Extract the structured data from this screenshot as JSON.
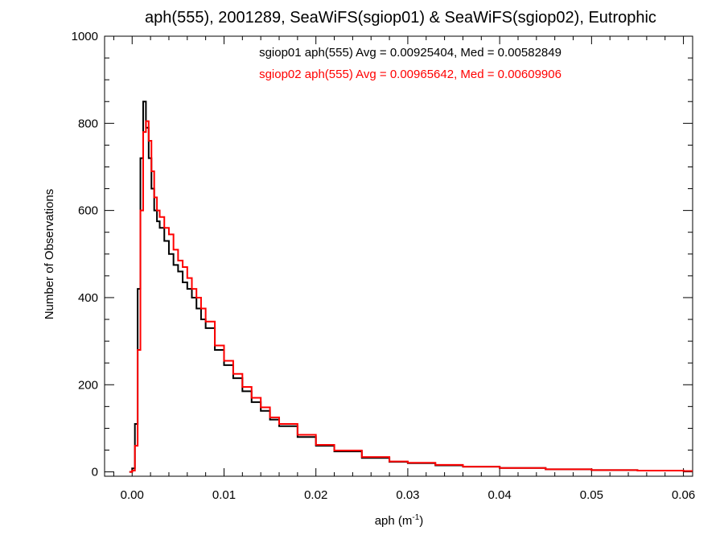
{
  "chart_data": {
    "type": "line",
    "title": "aph(555), 2001289, SeaWiFS(sgiop01) & SeaWiFS(sgiop02), Eutrophic",
    "xlabel_main": "aph (m",
    "xlabel_sup": "-1",
    "xlabel_tail": ")",
    "ylabel": "Number of Observations",
    "xlim": [
      -0.003,
      0.061
    ],
    "ylim": [
      -10,
      1000
    ],
    "xticks": [
      0.0,
      0.01,
      0.02,
      0.03,
      0.04,
      0.05,
      0.06
    ],
    "xtick_labels": [
      "0.00",
      "0.01",
      "0.02",
      "0.03",
      "0.04",
      "0.05",
      "0.06"
    ],
    "yticks": [
      0,
      200,
      400,
      600,
      800,
      1000
    ],
    "ytick_labels": [
      "0",
      "200",
      "400",
      "600",
      "800",
      "1000"
    ],
    "x": [
      -0.0003,
      0.0,
      0.0003,
      0.0006,
      0.0009,
      0.0012,
      0.0015,
      0.0018,
      0.0021,
      0.0024,
      0.0027,
      0.003,
      0.0035,
      0.004,
      0.0045,
      0.005,
      0.0055,
      0.006,
      0.0065,
      0.007,
      0.0075,
      0.008,
      0.009,
      0.01,
      0.011,
      0.012,
      0.013,
      0.014,
      0.015,
      0.016,
      0.018,
      0.02,
      0.022,
      0.025,
      0.028,
      0.03,
      0.033,
      0.036,
      0.04,
      0.045,
      0.05,
      0.055,
      0.06
    ],
    "series": [
      {
        "name": "sgiop01",
        "color": "#000000",
        "values": [
          0,
          8,
          110,
          420,
          720,
          850,
          790,
          720,
          650,
          600,
          575,
          560,
          530,
          500,
          475,
          460,
          435,
          420,
          400,
          375,
          350,
          330,
          280,
          245,
          215,
          185,
          160,
          140,
          120,
          105,
          80,
          60,
          47,
          32,
          23,
          20,
          15,
          12,
          9,
          6,
          4,
          3,
          2
        ]
      },
      {
        "name": "sgiop02",
        "color": "#ff0000",
        "values": [
          0,
          3,
          60,
          280,
          600,
          780,
          805,
          760,
          690,
          630,
          600,
          585,
          560,
          545,
          510,
          485,
          470,
          445,
          420,
          400,
          375,
          345,
          290,
          255,
          225,
          195,
          170,
          148,
          125,
          110,
          85,
          62,
          49,
          34,
          24,
          21,
          16,
          12,
          9,
          6,
          4,
          3,
          2
        ]
      }
    ],
    "annotations": [
      {
        "text": "sgiop01 aph(555) Avg = 0.00925404, Med = 0.00582849",
        "color": "#000000"
      },
      {
        "text": "sgiop02 aph(555) Avg = 0.00965642, Med = 0.00609906",
        "color": "#ff0000"
      }
    ],
    "grid": false
  }
}
